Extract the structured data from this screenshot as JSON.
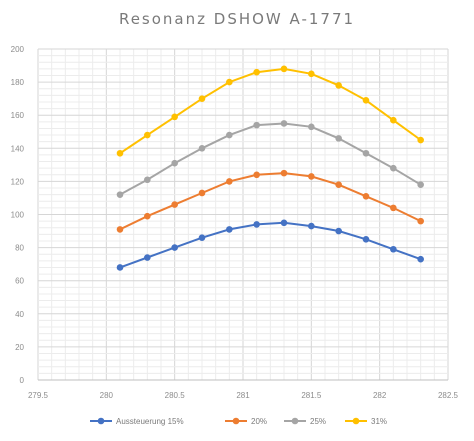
{
  "chart_data": {
    "type": "line",
    "title": "Resonanz DSHOW A-1771",
    "xlabel": "",
    "ylabel": "",
    "xlim": [
      279.5,
      282.5
    ],
    "ylim": [
      0,
      200
    ],
    "x_ticks": [
      "279.5",
      "280",
      "280.5",
      "281",
      "281.5",
      "282",
      "282.5"
    ],
    "y_ticks": [
      "0",
      "20",
      "40",
      "60",
      "80",
      "100",
      "120",
      "140",
      "160",
      "180",
      "200"
    ],
    "grid": true,
    "legend_position": "bottom",
    "x": [
      280.1,
      280.3,
      280.5,
      280.7,
      280.9,
      281.1,
      281.3,
      281.5,
      281.7,
      281.9,
      282.1,
      282.3
    ],
    "series": [
      {
        "name": "Aussteuerung 15%",
        "color": "#4472c4",
        "values": [
          68,
          74,
          80,
          86,
          91,
          94,
          95,
          93,
          90,
          85,
          79,
          73
        ]
      },
      {
        "name": "20%",
        "color": "#ed7d31",
        "values": [
          91,
          99,
          106,
          113,
          120,
          124,
          125,
          123,
          118,
          111,
          104,
          96
        ]
      },
      {
        "name": "25%",
        "color": "#a5a5a5",
        "values": [
          112,
          121,
          131,
          140,
          148,
          154,
          155,
          153,
          146,
          137,
          128,
          118
        ]
      },
      {
        "name": "31%",
        "color": "#ffc000",
        "values": [
          137,
          148,
          159,
          170,
          180,
          186,
          188,
          185,
          178,
          169,
          157,
          145
        ]
      }
    ]
  }
}
